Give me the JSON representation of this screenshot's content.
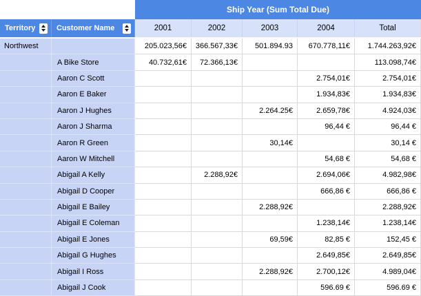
{
  "header": {
    "group_label": "Ship Year (Sum Total Due)"
  },
  "columns": {
    "territory": "Territory",
    "customer": "Customer Name",
    "years": [
      "2001",
      "2002",
      "2003",
      "2004",
      "Total"
    ]
  },
  "rows": [
    {
      "territory": "Northwest",
      "customer": "",
      "values": [
        "205.023,56€",
        "366.567,33€",
        "501.894.93",
        "670.778,11€",
        "1.744.263,92€"
      ]
    },
    {
      "territory": "",
      "customer": "A Bike Store",
      "values": [
        "40.732,61€",
        "72.366,13€",
        "",
        "",
        "113.098,74€"
      ]
    },
    {
      "territory": "",
      "customer": "Aaron C Scott",
      "values": [
        "",
        "",
        "",
        "2.754,01€",
        "2.754,01€"
      ]
    },
    {
      "territory": "",
      "customer": "Aaron E Baker",
      "values": [
        "",
        "",
        "",
        "1.934,83€",
        "1.934,83€"
      ]
    },
    {
      "territory": "",
      "customer": "Aaron J Hughes",
      "values": [
        "",
        "",
        "2.264.25€",
        "2.659,78€",
        "4.924,03€"
      ]
    },
    {
      "territory": "",
      "customer": "Aaron J Sharma",
      "values": [
        "",
        "",
        "",
        "96,44 €",
        "96,44 €"
      ]
    },
    {
      "territory": "",
      "customer": "Aaron R Green",
      "values": [
        "",
        "",
        "30,14€",
        "",
        "30,14 €"
      ]
    },
    {
      "territory": "",
      "customer": "Aaron W Mitchell",
      "values": [
        "",
        "",
        "",
        "54,68 €",
        "54,68 €"
      ]
    },
    {
      "territory": "",
      "customer": "Abigail A Kelly",
      "values": [
        "",
        "2.288,92€",
        "",
        "2.694,06€",
        "4.982,98€"
      ]
    },
    {
      "territory": "",
      "customer": "Abigail D Cooper",
      "values": [
        "",
        "",
        "",
        "666,86 €",
        "666,86 €"
      ]
    },
    {
      "territory": "",
      "customer": "Abigail E Bailey",
      "values": [
        "",
        "",
        "2.288,92€",
        "",
        "2.288,92€"
      ]
    },
    {
      "territory": "",
      "customer": "Abigail E Coleman",
      "values": [
        "",
        "",
        "",
        "1.238,14€",
        "1.238,14€"
      ]
    },
    {
      "territory": "",
      "customer": "Abigail E Jones",
      "values": [
        "",
        "",
        "69,59€",
        "82,85 €",
        "152,45 €"
      ]
    },
    {
      "territory": "",
      "customer": "Abigail G Hughes",
      "values": [
        "",
        "",
        "",
        "2.649,85€",
        "2.649,85€"
      ]
    },
    {
      "territory": "",
      "customer": "Abigail I Ross",
      "values": [
        "",
        "",
        "2.288,92€",
        "2.700,12€",
        "4.989,04€"
      ]
    },
    {
      "territory": "",
      "customer": "Abigail J Cook",
      "values": [
        "",
        "",
        "",
        "596.69 €",
        "596.69 €"
      ]
    }
  ],
  "colors": {
    "header_blue": "#4C87E3",
    "year_row_bg": "#D8E1FA",
    "name_cell_bg": "#C8D4F6",
    "grid_line": "#D9D9D9",
    "header_text": "#FFFFFF",
    "body_text": "#000000"
  }
}
